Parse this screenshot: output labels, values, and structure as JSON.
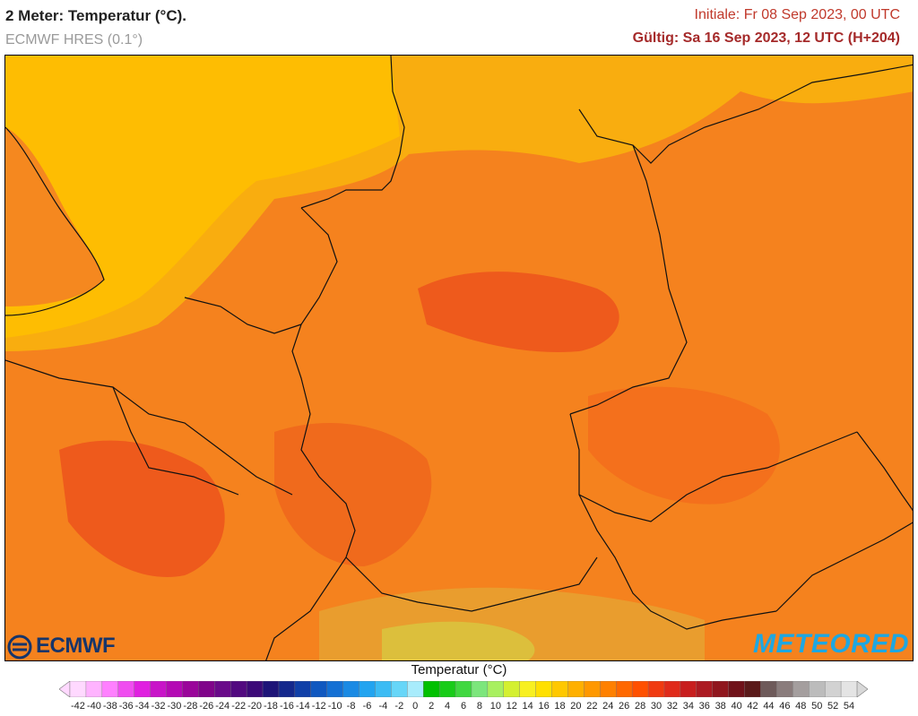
{
  "header": {
    "title": "2 Meter: Temperatur (°C).",
    "model": "ECMWF HRES (0.1°)",
    "init": "Initiale: Fr 08 Sep 2023, 00 UTC",
    "valid": "Gültig: Sa 16 Sep 2023, 12 UTC (H+204)"
  },
  "logos": {
    "left": "ECMWF",
    "right": "METEORED"
  },
  "legend": {
    "title": "Temperatur (°C)",
    "ticks": [
      "-42",
      "-40",
      "-38",
      "-36",
      "-34",
      "-32",
      "-30",
      "-28",
      "-26",
      "-24",
      "-22",
      "-20",
      "-18",
      "-16",
      "-14",
      "-12",
      "-10",
      "-8",
      "-6",
      "-4",
      "-2",
      "0",
      "2",
      "4",
      "6",
      "8",
      "10",
      "12",
      "14",
      "16",
      "18",
      "20",
      "22",
      "24",
      "26",
      "28",
      "30",
      "32",
      "34",
      "36",
      "38",
      "40",
      "42",
      "44",
      "46",
      "48",
      "50",
      "52",
      "54"
    ],
    "colors": [
      "#ffd9ff",
      "#ffb3ff",
      "#ff80ff",
      "#f04df0",
      "#e020e0",
      "#c814c8",
      "#b40ab4",
      "#9a069a",
      "#80048a",
      "#6a0a8a",
      "#520a80",
      "#3c0a78",
      "#1e1478",
      "#14288c",
      "#1040a8",
      "#1058c0",
      "#1470d4",
      "#1a8ae4",
      "#22a4f0",
      "#3cbcf4",
      "#66d6f8",
      "#a8ecfc",
      "#00c000",
      "#18cc18",
      "#40d840",
      "#7ce67c",
      "#a8f060",
      "#d4f030",
      "#f8f020",
      "#ffe000",
      "#ffc800",
      "#ffb000",
      "#ff9800",
      "#ff8000",
      "#ff6800",
      "#ff5000",
      "#f03a10",
      "#e02a1a",
      "#c81e1e",
      "#ac1a22",
      "#90161e",
      "#70121a",
      "#5a1a1a",
      "#6e5a5a",
      "#8a7c7c",
      "#a49e9e",
      "#bcbcbc",
      "#d2d2d2",
      "#e4e4e4"
    ]
  }
}
